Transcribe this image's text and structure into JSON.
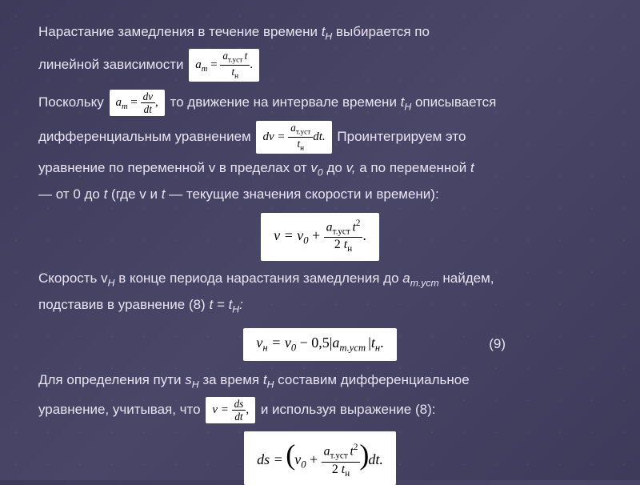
{
  "slide": {
    "bg_gradient": [
      "#3d3a5a",
      "#4a4668",
      "#3d3a5a"
    ],
    "text_color": "#e8e4f2",
    "formula_bg": "#ffffff",
    "formula_fg": "#000000",
    "font_size_body": 17,
    "font_size_formula": 15
  },
  "p1": {
    "line1": "Нарастание замедления в течение времени ",
    "t_h": "t",
    "t_h_sub": "Н",
    "line1b": " выбирается по",
    "line2": "линейной зависимости "
  },
  "f1": {
    "lhs": "a",
    "lhs_sub": "т",
    "eq": " = ",
    "num_a": "a",
    "num_sub": "т.уст ",
    "num_t": "t",
    "den": "t",
    "den_sub": "н",
    "dot": "."
  },
  "p2": {
    "a": "Поскольку ",
    "b": " то движение на интервале времени ",
    "t": "t",
    "t_sub": "Н",
    "c": " описывается",
    "d": "дифференциальным уравнением ",
    "e": " Проинтегрируем это",
    "f": "уравнение по переменной v в пределах от ",
    "v0": "v",
    "v0_sub": "0",
    "g": " до ",
    "v": "v,",
    "h": " а по переменной ",
    "tv": "t",
    "i": "— от 0 до ",
    "j": " (где v и ",
    "k": " — текущие значения скорости и времени):"
  },
  "f2": {
    "lhs": "a",
    "lhs_sub": "т",
    "eq": " = ",
    "num": "dv",
    "den": "dt",
    "tail": ","
  },
  "f3": {
    "lhs": "dv = ",
    "num_a": "a",
    "num_sub": "т.уст",
    "den": "t",
    "den_sub": "н",
    "tail": "dt."
  },
  "f4": {
    "pre": "v = v",
    "sub0": "0",
    "plus": " + ",
    "num_a": "a",
    "num_sub": "т.уст ",
    "num_t": "t",
    "num_sup": "2",
    "den_2": "2 ",
    "den_t": "t",
    "den_sub": "н",
    "dot": "."
  },
  "p3": {
    "a": "Скорость v",
    "a_sub": "Н",
    "b": " в конце периода нарастания замедления до ",
    "at": "a",
    "at_sub": "т.уст",
    "c": " найдем,",
    "d": "подставив в уравнение (8) ",
    "t": "t",
    "eq": " = ",
    "t2": "t",
    "t2_sub": "Н",
    "colon": ":"
  },
  "f5": {
    "pre": "v",
    "pre_sub": "н",
    "mid": " = v",
    "mid_sub": "0",
    "minus": " − 0,5|",
    "a": "a",
    "a_sub": "т.уст ",
    "bar2": "|",
    "t": "t",
    "t_sub": "н",
    "dot": "."
  },
  "eq9": "(9)",
  "p4": {
    "a": "Для определения пути ",
    "s": "s",
    "s_sub": "Н",
    "b": " за время ",
    "t": "t",
    "t_sub": "Н",
    "c": " составим дифференциальное",
    "d": "уравнение, учитывая, что ",
    "e": " и используя выражение (8):"
  },
  "f6": {
    "lhs": "v = ",
    "num": "ds",
    "den": "dt",
    "tail": ","
  },
  "f7": {
    "lhs": "ds = ",
    "v": "v",
    "v_sub": "0",
    "plus": " + ",
    "num_a": "a",
    "num_sub": "т.уст ",
    "num_t": "t",
    "num_sup": "2",
    "den_2": "2 ",
    "den_t": "t",
    "den_sub": "н",
    "tail": "dt."
  }
}
